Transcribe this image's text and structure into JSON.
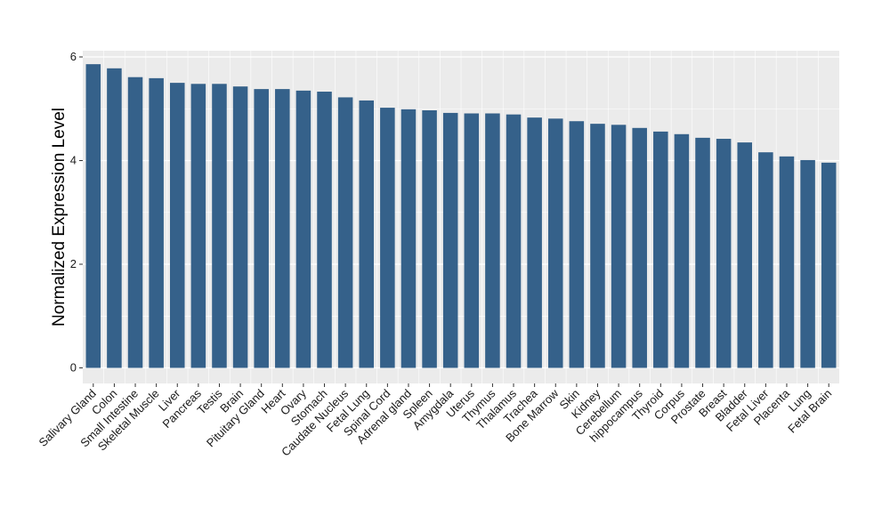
{
  "chart_data": {
    "type": "bar",
    "title": "",
    "xlabel": "",
    "ylabel": "Normalized Expression Level",
    "ylim": [
      -0.3,
      6.12
    ],
    "yticks": [
      0,
      2,
      4,
      6
    ],
    "grid": true,
    "colors": {
      "bar": "#35618a",
      "panel": "#ebebeb",
      "grid": "#ffffff"
    },
    "categories": [
      "Salivary Gland",
      "Colon",
      "Small Intestine",
      "Skeletal Muscle",
      "Liver",
      "Pancreas",
      "Testis",
      "Brain",
      "Pituitary Gland",
      "Heart",
      "Ovary",
      "Stomach",
      "Caudate Nucleus",
      "Fetal Lung",
      "Spinal Cord",
      "Adrenal gland",
      "Spleen",
      "Amygdala",
      "Uterus",
      "Thymus",
      "Thalamus",
      "Trachea",
      "Bone Marrow",
      "Skin",
      "Kidney",
      "Cerebellum",
      "hippocampus",
      "Thyroid",
      "Corpus",
      "Prostate",
      "Breast",
      "Bladder",
      "Fetal Liver",
      "Placenta",
      "Lung",
      "Fetal Brain"
    ],
    "values": [
      5.86,
      5.78,
      5.61,
      5.59,
      5.5,
      5.48,
      5.48,
      5.43,
      5.38,
      5.38,
      5.35,
      5.33,
      5.22,
      5.16,
      5.02,
      4.99,
      4.97,
      4.92,
      4.91,
      4.91,
      4.89,
      4.83,
      4.81,
      4.76,
      4.71,
      4.69,
      4.63,
      4.56,
      4.51,
      4.44,
      4.42,
      4.35,
      4.16,
      4.08,
      4.01,
      3.96
    ]
  }
}
